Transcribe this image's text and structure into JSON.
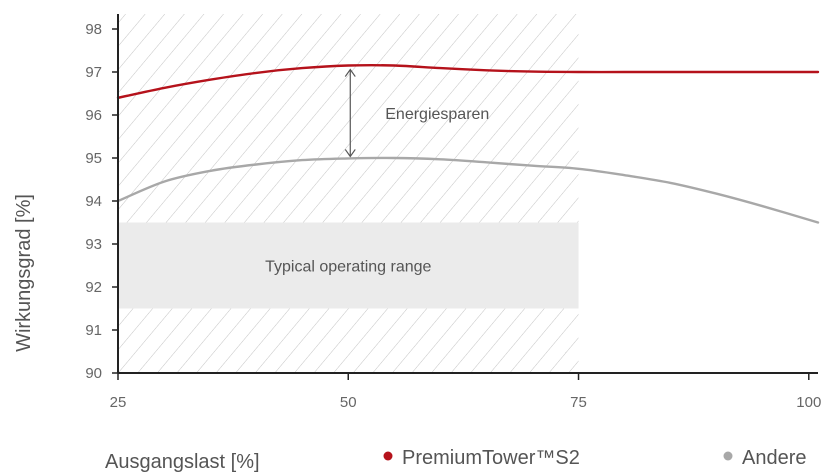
{
  "chart_data": {
    "type": "line",
    "xlabel": "Ausgangslast [%]",
    "ylabel": "Wirkungsgrad [%]",
    "xlim": [
      25,
      101
    ],
    "ylim": [
      90,
      98
    ],
    "x_ticks": [
      25,
      50,
      75,
      100
    ],
    "y_ticks": [
      90,
      91,
      92,
      93,
      94,
      95,
      96,
      97,
      98
    ],
    "grid": false,
    "legend_position": "bottom",
    "series": [
      {
        "name": "PremiumTower™S2",
        "color": "#b5121b",
        "x": [
          25,
          30,
          35,
          40,
          45,
          50,
          55,
          60,
          65,
          70,
          75,
          80,
          85,
          90,
          95,
          101
        ],
        "y": [
          96.4,
          96.63,
          96.82,
          96.98,
          97.09,
          97.15,
          97.15,
          97.09,
          97.04,
          97.01,
          97.0,
          97.0,
          97.0,
          97.0,
          97.0,
          97.0
        ]
      },
      {
        "name": "Andere",
        "color": "#a8a8a8",
        "x": [
          25,
          30,
          35,
          40,
          45,
          50,
          55,
          60,
          65,
          70,
          75,
          80,
          85,
          90,
          95,
          101
        ],
        "y": [
          94.0,
          94.45,
          94.7,
          94.85,
          94.95,
          94.99,
          95.0,
          94.97,
          94.9,
          94.82,
          94.75,
          94.6,
          94.42,
          94.17,
          93.88,
          93.5
        ]
      }
    ],
    "annotations": {
      "savings_label": "Energiesparen",
      "operating_range_label": "Typical operating range",
      "operating_range_y": [
        91.5,
        93.5
      ],
      "hatched_region_x": [
        25,
        75
      ],
      "savings_arrow_x": 50
    }
  }
}
